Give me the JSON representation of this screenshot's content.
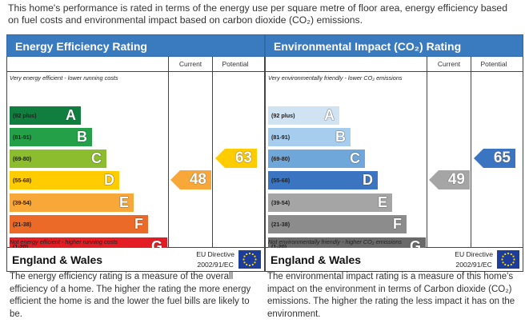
{
  "intro": "This home's performance is rated in terms of the energy use per square metre of floor area, energy efficiency based on fuel costs and environmental impact based on carbon dioxide (CO₂) emissions.",
  "colors": {
    "header": "#3a7bbf",
    "ee_bands": [
      "#0f7e3f",
      "#23a048",
      "#8cbd2e",
      "#ffcc00",
      "#f7a838",
      "#ec6a27",
      "#e31d23"
    ],
    "ei_bands": [
      "#cfe3f3",
      "#a6cdee",
      "#6fa7da",
      "#3b74c1",
      "#a5a5a5",
      "#8c8c8c",
      "#6a6a6a"
    ]
  },
  "efficiency": {
    "title": "Energy Efficiency Rating",
    "col_current": "Current",
    "col_potential": "Potential",
    "top_caption": "Very energy efficient - lower running costs",
    "bottom_caption": "Not energy efficient - higher running costs",
    "bands": [
      {
        "range": "(92 plus)",
        "letter": "A"
      },
      {
        "range": "(81-91)",
        "letter": "B"
      },
      {
        "range": "(69-80)",
        "letter": "C"
      },
      {
        "range": "(55-68)",
        "letter": "D"
      },
      {
        "range": "(39-54)",
        "letter": "E"
      },
      {
        "range": "(21-38)",
        "letter": "F"
      },
      {
        "range": "(1-20)",
        "letter": "G"
      }
    ],
    "current": {
      "value": "48",
      "band": "E",
      "color": "#f7a838"
    },
    "potential": {
      "value": "63",
      "band": "D",
      "color": "#ffcc00"
    },
    "region": "England & Wales",
    "directive_line1": "EU Directive",
    "directive_line2": "2002/91/EC",
    "description": "The energy efficiency rating is a measure of the overall efficiency of a home. The higher the rating the more energy efficient the home is and the lower the fuel bills are likely to be."
  },
  "environment": {
    "title": "Environmental Impact (CO₂) Rating",
    "col_current": "Current",
    "col_potential": "Potential",
    "top_caption": "Very environmentally friendly - lower CO₂ emissions",
    "bottom_caption": "Not environmentally friendly - higher CO₂ emissions",
    "bands": [
      {
        "range": "(92 plus)",
        "letter": "A"
      },
      {
        "range": "(81-91)",
        "letter": "B"
      },
      {
        "range": "(69-80)",
        "letter": "C"
      },
      {
        "range": "(55-68)",
        "letter": "D"
      },
      {
        "range": "(39-54)",
        "letter": "E"
      },
      {
        "range": "(21-38)",
        "letter": "F"
      },
      {
        "range": "(1-20)",
        "letter": "G"
      }
    ],
    "current": {
      "value": "49",
      "band": "E",
      "color": "#a5a5a5"
    },
    "potential": {
      "value": "65",
      "band": "D",
      "color": "#3b74c1"
    },
    "region": "England & Wales",
    "directive_line1": "EU Directive",
    "directive_line2": "2002/91/EC",
    "description": "The environmental impact rating is a measure of this home's impact on the environment in terms of Carbon dioxide (CO₂) emissions. The higher the rating the less impact it has on the environment."
  }
}
